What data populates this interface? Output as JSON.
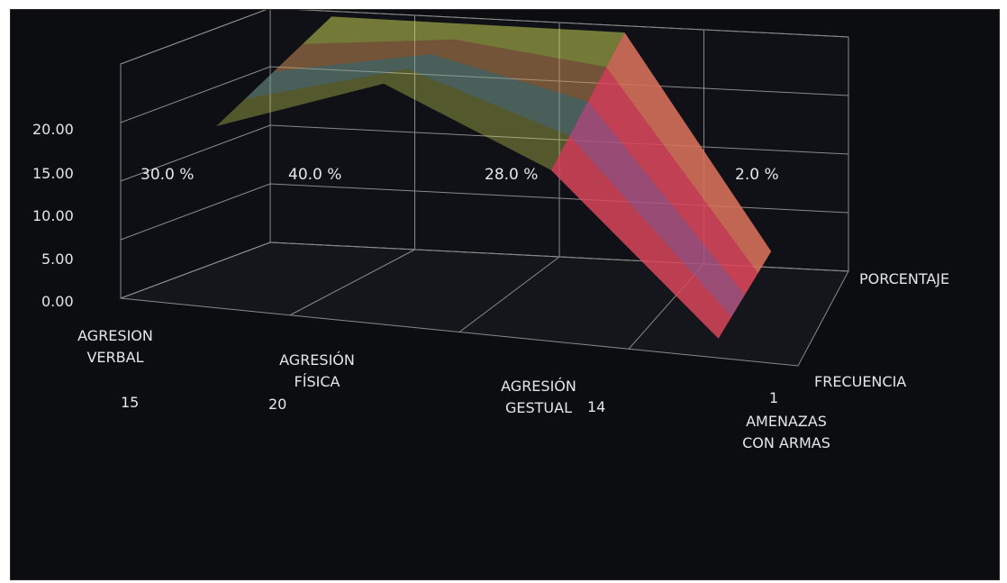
{
  "chart_data": {
    "type": "surface",
    "categories": [
      "AGRESION VERBAL",
      "AGRESIÓN FÍSICA",
      "AGRESIÓN GESTUAL",
      "AMENAZAS CON ARMAS"
    ],
    "category_lines": [
      [
        "AGRESION",
        "VERBAL"
      ],
      [
        "AGRESIÓN",
        "FÍSICA"
      ],
      [
        "AGRESIÓN",
        "GESTUAL"
      ],
      [
        "AMENAZAS",
        "CON ARMAS"
      ]
    ],
    "series": [
      {
        "name": "FRECUENCIA",
        "values": [
          15,
          20,
          14,
          1
        ],
        "value_labels": [
          "15",
          "20",
          "14",
          "1"
        ]
      },
      {
        "name": "PORCENTAJE",
        "values": [
          30.0,
          40.0,
          28.0,
          2.0
        ],
        "value_labels": [
          "30.0 %",
          "40.0 %",
          "28.0 %",
          "2.0 %"
        ]
      }
    ],
    "y_ticks": [
      "0.00",
      "5.00",
      "10.00",
      "15.00",
      "20.00"
    ],
    "ylim": [
      0,
      20
    ],
    "grid": true,
    "band_colors": [
      "#2f73e0",
      "#d9465a",
      "#d2e05a"
    ]
  }
}
